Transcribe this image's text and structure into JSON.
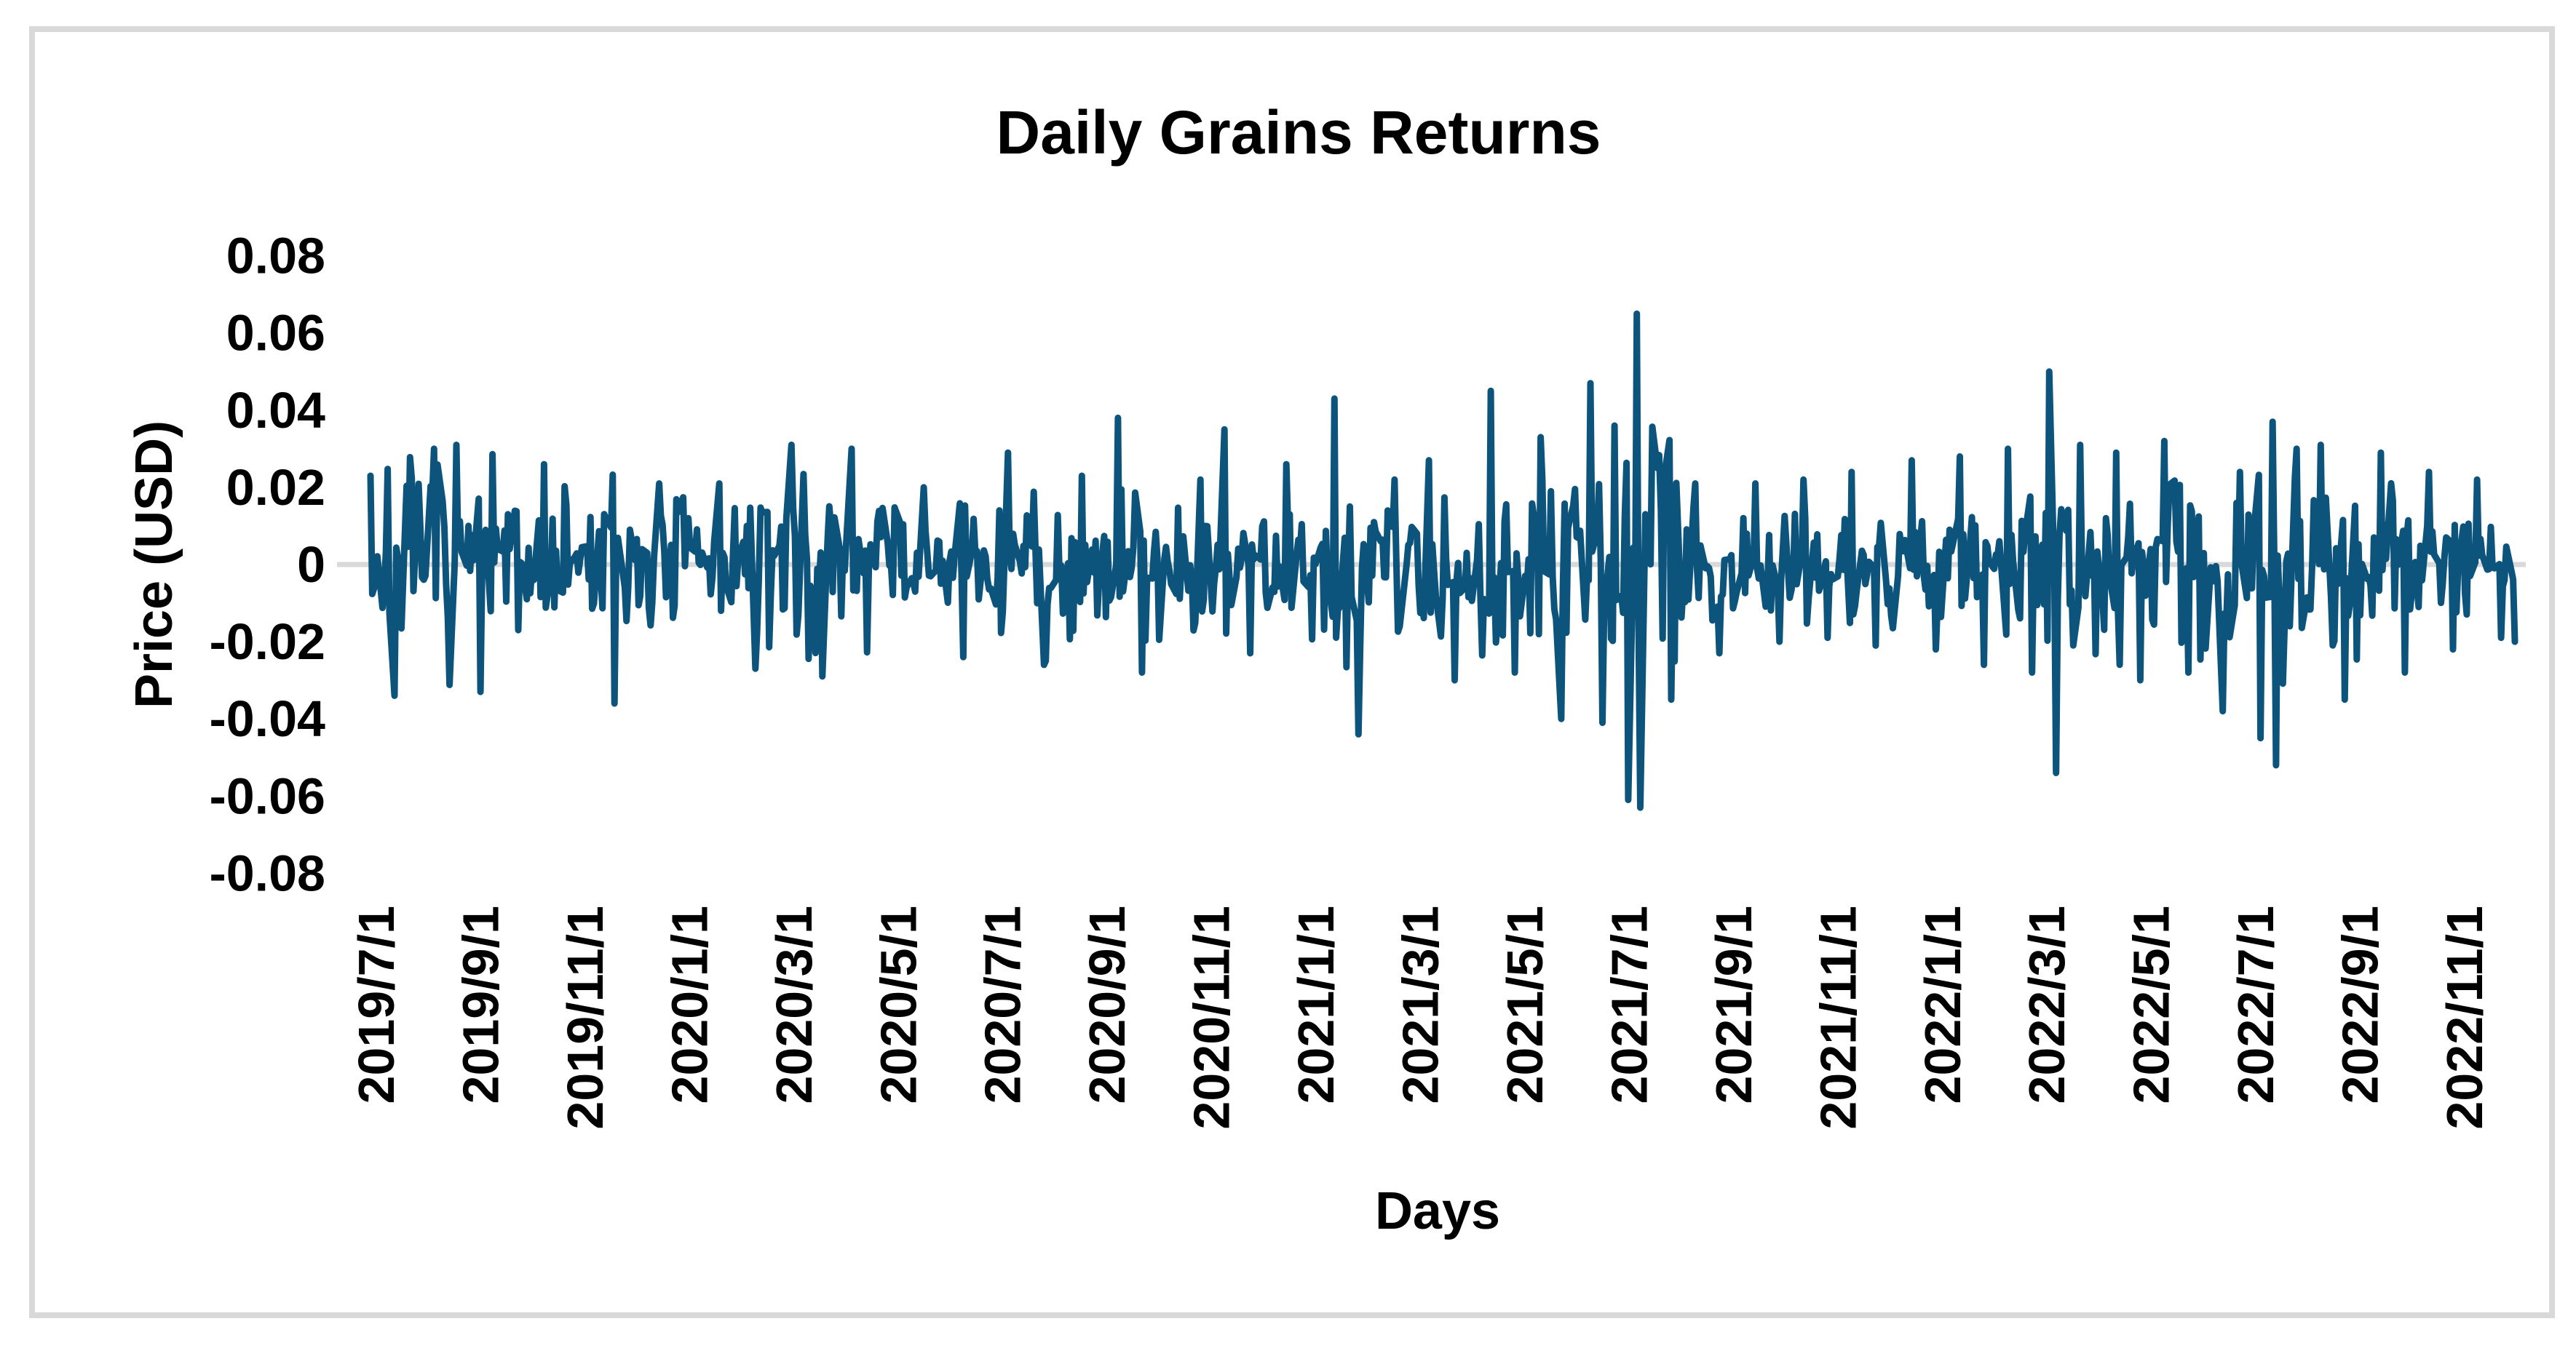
{
  "window": {
    "background": "#ffffff",
    "frame_border_color": "#d9d9d9"
  },
  "chart_data": {
    "type": "line",
    "title": "Daily Grains Returns",
    "xlabel": "Days",
    "ylabel": "Price (USD)",
    "ylim": [
      -0.08,
      0.08
    ],
    "y_tick_labels": [
      "0.08",
      "0.06",
      "0.04",
      "0.02",
      "0",
      "-0.02",
      "-0.04",
      "-0.06",
      "-0.08"
    ],
    "x_tick_labels": [
      "2019/7/1",
      "2019/9/1",
      "2019/11/1",
      "2020/1/1",
      "2020/3/1",
      "2020/5/1",
      "2020/7/1",
      "2020/9/1",
      "2020/11/1",
      "2021/1/1",
      "2021/3/1",
      "2021/5/1",
      "2021/7/1",
      "2021/9/1",
      "2021/11/1",
      "2022/1/1",
      "2022/3/1",
      "2022/5/1",
      "2022/7/1",
      "2022/9/1",
      "2022/11/1"
    ],
    "grid": "off",
    "legend": "none",
    "zero_line_color": "#d9d9d9",
    "series": [
      {
        "name": "Daily Grains Returns",
        "color": "#0d547c",
        "stroke_width": 9
      }
    ],
    "date_range": {
      "start": "2019-07-01",
      "end": "2022-11-30",
      "frequency": "trading-days"
    },
    "generation": {
      "seed": 7,
      "clamp_sigma": 2.6,
      "monthly_sigma": {
        "2019-07": 0.012,
        "2019-08": 0.012,
        "2019-09": 0.011,
        "2019-10": 0.01,
        "2019-11": 0.011,
        "2019-12": 0.009,
        "2020-01": 0.008,
        "2020-02": 0.009,
        "2020-03": 0.011,
        "2020-04": 0.01,
        "2020-05": 0.008,
        "2020-06": 0.009,
        "2020-07": 0.01,
        "2020-08": 0.008,
        "2020-09": 0.011,
        "2020-10": 0.009,
        "2020-11": 0.011,
        "2020-12": 0.009,
        "2021-01": 0.012,
        "2021-02": 0.009,
        "2021-03": 0.01,
        "2021-04": 0.012,
        "2021-05": 0.012,
        "2021-06": 0.014,
        "2021-07": 0.015,
        "2021-08": 0.009,
        "2021-09": 0.008,
        "2021-10": 0.008,
        "2021-11": 0.009,
        "2021-12": 0.009,
        "2022-01": 0.009,
        "2022-02": 0.01,
        "2022-03": 0.013,
        "2022-04": 0.01,
        "2022-05": 0.011,
        "2022-06": 0.012,
        "2022-07": 0.013,
        "2022-08": 0.011,
        "2022-09": 0.01,
        "2022-10": 0.009,
        "2022-11": 0.008
      },
      "anchors": [
        [
          "2019-07-01",
          0.023
        ],
        [
          "2019-07-15",
          -0.034
        ],
        [
          "2019-08-07",
          0.03
        ],
        [
          "2019-08-20",
          0.031
        ],
        [
          "2019-09-03",
          -0.033
        ],
        [
          "2019-10-10",
          0.026
        ],
        [
          "2019-11-20",
          -0.036
        ],
        [
          "2019-12-16",
          0.021
        ],
        [
          "2020-01-20",
          0.021
        ],
        [
          "2020-02-10",
          -0.027
        ],
        [
          "2020-03-02",
          0.031
        ],
        [
          "2020-03-20",
          -0.029
        ],
        [
          "2020-04-06",
          0.03
        ],
        [
          "2020-05-18",
          0.02
        ],
        [
          "2020-06-10",
          -0.024
        ],
        [
          "2020-07-06",
          0.029
        ],
        [
          "2020-07-27",
          -0.026
        ],
        [
          "2020-08-18",
          0.023
        ],
        [
          "2020-09-08",
          0.038
        ],
        [
          "2020-09-22",
          -0.028
        ],
        [
          "2020-10-26",
          0.022
        ],
        [
          "2020-11-09",
          0.035
        ],
        [
          "2020-11-24",
          -0.023
        ],
        [
          "2020-12-15",
          0.026
        ],
        [
          "2021-01-12",
          0.043
        ],
        [
          "2021-01-26",
          -0.044
        ],
        [
          "2021-02-16",
          0.022
        ],
        [
          "2021-03-08",
          0.027
        ],
        [
          "2021-03-23",
          -0.03
        ],
        [
          "2021-04-13",
          0.045
        ],
        [
          "2021-04-27",
          -0.028
        ],
        [
          "2021-05-12",
          0.033
        ],
        [
          "2021-05-24",
          -0.04
        ],
        [
          "2021-06-10",
          0.047
        ],
        [
          "2021-06-17",
          -0.041
        ],
        [
          "2021-06-24",
          0.036
        ],
        [
          "2021-07-02",
          -0.061
        ],
        [
          "2021-07-07",
          0.065
        ],
        [
          "2021-07-09",
          -0.063
        ],
        [
          "2021-07-19",
          0.025
        ],
        [
          "2021-07-27",
          -0.035
        ],
        [
          "2021-08-10",
          0.021
        ],
        [
          "2021-08-24",
          -0.023
        ],
        [
          "2021-09-14",
          0.021
        ],
        [
          "2021-09-28",
          -0.02
        ],
        [
          "2021-10-12",
          0.022
        ],
        [
          "2021-10-26",
          -0.019
        ],
        [
          "2021-11-09",
          0.024
        ],
        [
          "2021-11-23",
          -0.021
        ],
        [
          "2021-12-14",
          0.027
        ],
        [
          "2021-12-28",
          -0.022
        ],
        [
          "2022-01-11",
          0.028
        ],
        [
          "2022-01-25",
          -0.026
        ],
        [
          "2022-02-08",
          0.03
        ],
        [
          "2022-02-22",
          -0.028
        ],
        [
          "2022-03-04",
          0.05
        ],
        [
          "2022-03-08",
          -0.054
        ],
        [
          "2022-03-22",
          0.031
        ],
        [
          "2022-04-12",
          0.029
        ],
        [
          "2022-04-26",
          -0.03
        ],
        [
          "2022-05-10",
          0.032
        ],
        [
          "2022-05-24",
          -0.028
        ],
        [
          "2022-06-13",
          -0.038
        ],
        [
          "2022-06-23",
          0.024
        ],
        [
          "2022-07-05",
          -0.045
        ],
        [
          "2022-07-12",
          0.037
        ],
        [
          "2022-07-14",
          -0.052
        ],
        [
          "2022-07-26",
          0.03
        ],
        [
          "2022-08-09",
          0.031
        ],
        [
          "2022-08-23",
          -0.035
        ],
        [
          "2022-09-13",
          0.029
        ],
        [
          "2022-09-27",
          -0.028
        ],
        [
          "2022-10-11",
          0.024
        ],
        [
          "2022-10-25",
          -0.022
        ],
        [
          "2022-11-08",
          0.022
        ],
        [
          "2022-11-22",
          -0.019
        ],
        [
          "2022-11-30",
          -0.02
        ]
      ]
    }
  }
}
